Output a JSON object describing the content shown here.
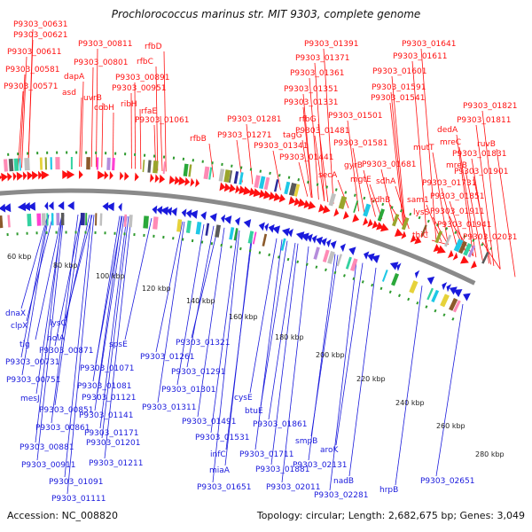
{
  "title": "Prochlorococcus marinus str. MIT 9303, complete genome",
  "accession": "Accession: NC_008820",
  "topology": "Topology: circular; Length: 2,682,675 bp; Genes: 3,049",
  "colors": {
    "forward": "#ff1111",
    "reverse": "#1a1adc",
    "backbone": "#8a8a8a",
    "dotted": "#2e9a2e"
  },
  "ticks": [
    "60 kbp",
    "80 kbp",
    "100 kbp",
    "120 kbp",
    "140 kbp",
    "160 kbp",
    "180 kbp",
    "200 kbp",
    "220 kbp",
    "240 kbp",
    "260 kbp",
    "280 kbp"
  ],
  "labels_top": [
    "P9303_00631",
    "P9303_00621",
    "P9303_00611",
    "P9303_00581",
    "P9303_00571",
    "dapA",
    "asd",
    "uvrB",
    "cobH",
    "P9303_00811",
    "P9303_00801",
    "rfbD",
    "rfbC",
    "P9303_00891",
    "P9303_00951",
    "ribH",
    "rfaE",
    "P9303_01061",
    "rfbB",
    "P9303_01391",
    "P9303_01371",
    "P9303_01361",
    "P9303_01351",
    "P9303_01331",
    "P9303_01281",
    "P9303_01271",
    "rfbG",
    "tagG",
    "P9303_01341",
    "P9303_01481",
    "P9303_01441",
    "P9303_01501",
    "P9303_01581",
    "secA",
    "gyrB",
    "mgtE",
    "P9303_01641",
    "P9303_01611",
    "P9303_01601",
    "P9303_01591",
    "P9303_01541",
    "P9303_01681",
    "sdhA",
    "sdhB",
    "mutT",
    "mreC",
    "mreB",
    "dedA",
    "P9303_01821",
    "P9303_01811",
    "ruvB",
    "P9303_01831",
    "P9303_01901",
    "P9303_01731",
    "sam1",
    "P9303_01851",
    "lysS",
    "P9303_01911",
    "P9303_01941",
    "thiC",
    "P9303_02031"
  ],
  "labels_bottom": [
    "dnaX",
    "clpX",
    "tig",
    "lysC",
    "holA",
    "P9303_00871",
    "P9303_00731",
    "P9303_00751",
    "mesJ",
    "P9303_00851",
    "P9303_00861",
    "P9303_00881",
    "P9303_00911",
    "P9303_01091",
    "P9303_01111",
    "P9303_01071",
    "P9303_01081",
    "P9303_01121",
    "P9303_01141",
    "P9303_01171",
    "P9303_01201",
    "P9303_01211",
    "spsE",
    "P9303_01261",
    "P9303_01291",
    "P9303_01301",
    "P9303_01311",
    "P9303_01321",
    "P9303_01491",
    "P9303_01531",
    "cysE",
    "btuE",
    "infC",
    "P9303_01711",
    "miaA",
    "P9303_01651",
    "P9303_01881",
    "P9303_01861",
    "P9303_02011",
    "smpB",
    "aroK",
    "P9303_02131",
    "nadB",
    "P9303_02281",
    "hrpB",
    "P9303_02651"
  ]
}
